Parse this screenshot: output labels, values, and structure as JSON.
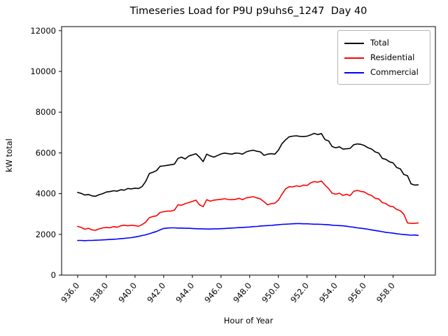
{
  "title": "Timeseries Load for P9U p9uhs6_1247  Day 40",
  "chart_data": {
    "type": "line",
    "title": "Timeseries Load for P9U p9uhs6_1247  Day 40",
    "xlabel": "Hour of Year",
    "ylabel": "kW total",
    "xlim": [
      934.88,
      960.95
    ],
    "ylim": [
      0,
      12200
    ],
    "grid": false,
    "legend_position": "upper right",
    "xtick_values": [
      936,
      938,
      940,
      942,
      944,
      946,
      948,
      950,
      952,
      954,
      956,
      958
    ],
    "xtick_labels": [
      "936.0",
      "938.0",
      "940.0",
      "942.0",
      "944.0",
      "946.0",
      "948.0",
      "950.0",
      "952.0",
      "954.0",
      "956.0",
      "958.0"
    ],
    "ytick_values": [
      0,
      2000,
      4000,
      6000,
      8000,
      10000,
      12000
    ],
    "ytick_labels": [
      "0",
      "2000",
      "4000",
      "6000",
      "8000",
      "10000",
      "12000"
    ],
    "x_start": 936.0,
    "x_step": 0.25,
    "series": [
      {
        "name": "Total",
        "color": "#000000",
        "values": [
          4060,
          4010,
          3930,
          3960,
          3890,
          3870,
          3950,
          4000,
          4080,
          4100,
          4140,
          4120,
          4190,
          4170,
          4250,
          4230,
          4270,
          4250,
          4350,
          4600,
          4990,
          5050,
          5130,
          5340,
          5360,
          5390,
          5420,
          5450,
          5730,
          5790,
          5700,
          5850,
          5900,
          5960,
          5790,
          5570,
          5940,
          5850,
          5790,
          5870,
          5950,
          5990,
          5960,
          5940,
          5990,
          5980,
          5940,
          6050,
          6100,
          6130,
          6080,
          6050,
          5880,
          5940,
          5960,
          5940,
          6130,
          6450,
          6640,
          6790,
          6820,
          6840,
          6810,
          6800,
          6820,
          6880,
          6960,
          6900,
          6950,
          6650,
          6590,
          6310,
          6250,
          6300,
          6190,
          6200,
          6220,
          6400,
          6440,
          6420,
          6360,
          6250,
          6190,
          6050,
          5990,
          5730,
          5680,
          5560,
          5510,
          5280,
          5220,
          4940,
          4880,
          4480,
          4420,
          4430
        ]
      },
      {
        "name": "Residential",
        "color": "#ff0000",
        "values": [
          2390,
          2340,
          2250,
          2300,
          2220,
          2200,
          2270,
          2320,
          2340,
          2320,
          2380,
          2350,
          2420,
          2450,
          2420,
          2450,
          2430,
          2400,
          2480,
          2600,
          2820,
          2880,
          2910,
          3075,
          3110,
          3140,
          3140,
          3190,
          3450,
          3430,
          3510,
          3560,
          3620,
          3680,
          3450,
          3360,
          3700,
          3630,
          3680,
          3700,
          3720,
          3750,
          3710,
          3700,
          3720,
          3770,
          3700,
          3790,
          3820,
          3850,
          3790,
          3740,
          3600,
          3450,
          3510,
          3530,
          3680,
          3970,
          4230,
          4340,
          4330,
          4380,
          4350,
          4420,
          4400,
          4530,
          4590,
          4560,
          4620,
          4420,
          4250,
          4020,
          3970,
          4020,
          3910,
          3970,
          3900,
          4110,
          4160,
          4110,
          4080,
          3970,
          3910,
          3770,
          3740,
          3560,
          3510,
          3390,
          3360,
          3220,
          3160,
          2990,
          2560,
          2540,
          2540,
          2560
        ]
      },
      {
        "name": "Commercial",
        "color": "#0000ff",
        "values": [
          1700,
          1700,
          1690,
          1700,
          1700,
          1710,
          1720,
          1730,
          1740,
          1750,
          1760,
          1770,
          1790,
          1800,
          1820,
          1840,
          1870,
          1900,
          1940,
          1980,
          2030,
          2090,
          2140,
          2220,
          2290,
          2310,
          2320,
          2320,
          2310,
          2310,
          2300,
          2300,
          2290,
          2280,
          2270,
          2270,
          2260,
          2260,
          2270,
          2270,
          2280,
          2290,
          2300,
          2310,
          2320,
          2330,
          2340,
          2350,
          2360,
          2380,
          2390,
          2410,
          2420,
          2430,
          2440,
          2460,
          2470,
          2490,
          2500,
          2510,
          2520,
          2530,
          2530,
          2520,
          2520,
          2510,
          2500,
          2500,
          2490,
          2480,
          2470,
          2450,
          2440,
          2430,
          2420,
          2400,
          2370,
          2350,
          2320,
          2300,
          2280,
          2250,
          2220,
          2190,
          2160,
          2130,
          2100,
          2080,
          2060,
          2030,
          2010,
          1990,
          1980,
          1960,
          1970,
          1950
        ]
      }
    ]
  }
}
